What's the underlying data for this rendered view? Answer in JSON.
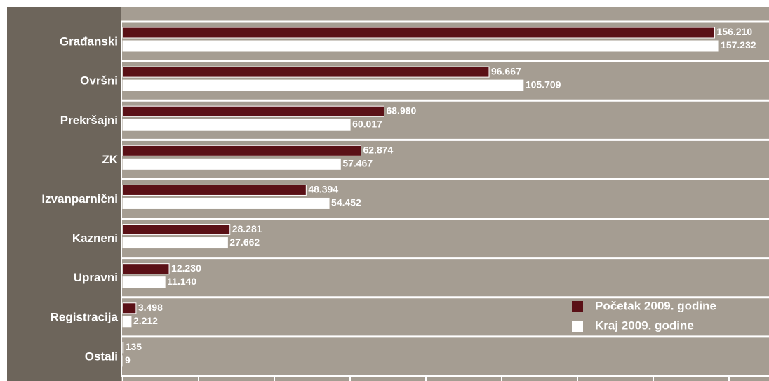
{
  "chart_data": {
    "type": "barh",
    "categories": [
      "Građanski",
      "Ovršni",
      "Prekršajni",
      "ZK",
      "Izvanparnični",
      "Kazneni",
      "Upravni",
      "Registracija",
      "Ostali"
    ],
    "series": [
      {
        "name": "Početak 2009. godine",
        "color": "#5a1016",
        "values": [
          156210,
          96667,
          68980,
          62874,
          48394,
          28281,
          12230,
          3498,
          135
        ],
        "value_labels": [
          "156.210",
          "96.667",
          "68.980",
          "62.874",
          "48.394",
          "28.281",
          "12.230",
          "3.498",
          "135"
        ]
      },
      {
        "name": "Kraj 2009. godine",
        "color": "#ffffff",
        "values": [
          157232,
          105709,
          60017,
          57467,
          54452,
          27662,
          11140,
          2212,
          9
        ],
        "value_labels": [
          "157.232",
          "105.709",
          "60.017",
          "57.467",
          "54.452",
          "27.662",
          "11.140",
          "2.212",
          "9"
        ]
      }
    ],
    "xlim": [
      0,
      170000
    ],
    "xticks": [
      0,
      20000,
      40000,
      60000,
      80000,
      100000,
      120000,
      140000,
      160000
    ],
    "legend": "lower right"
  }
}
